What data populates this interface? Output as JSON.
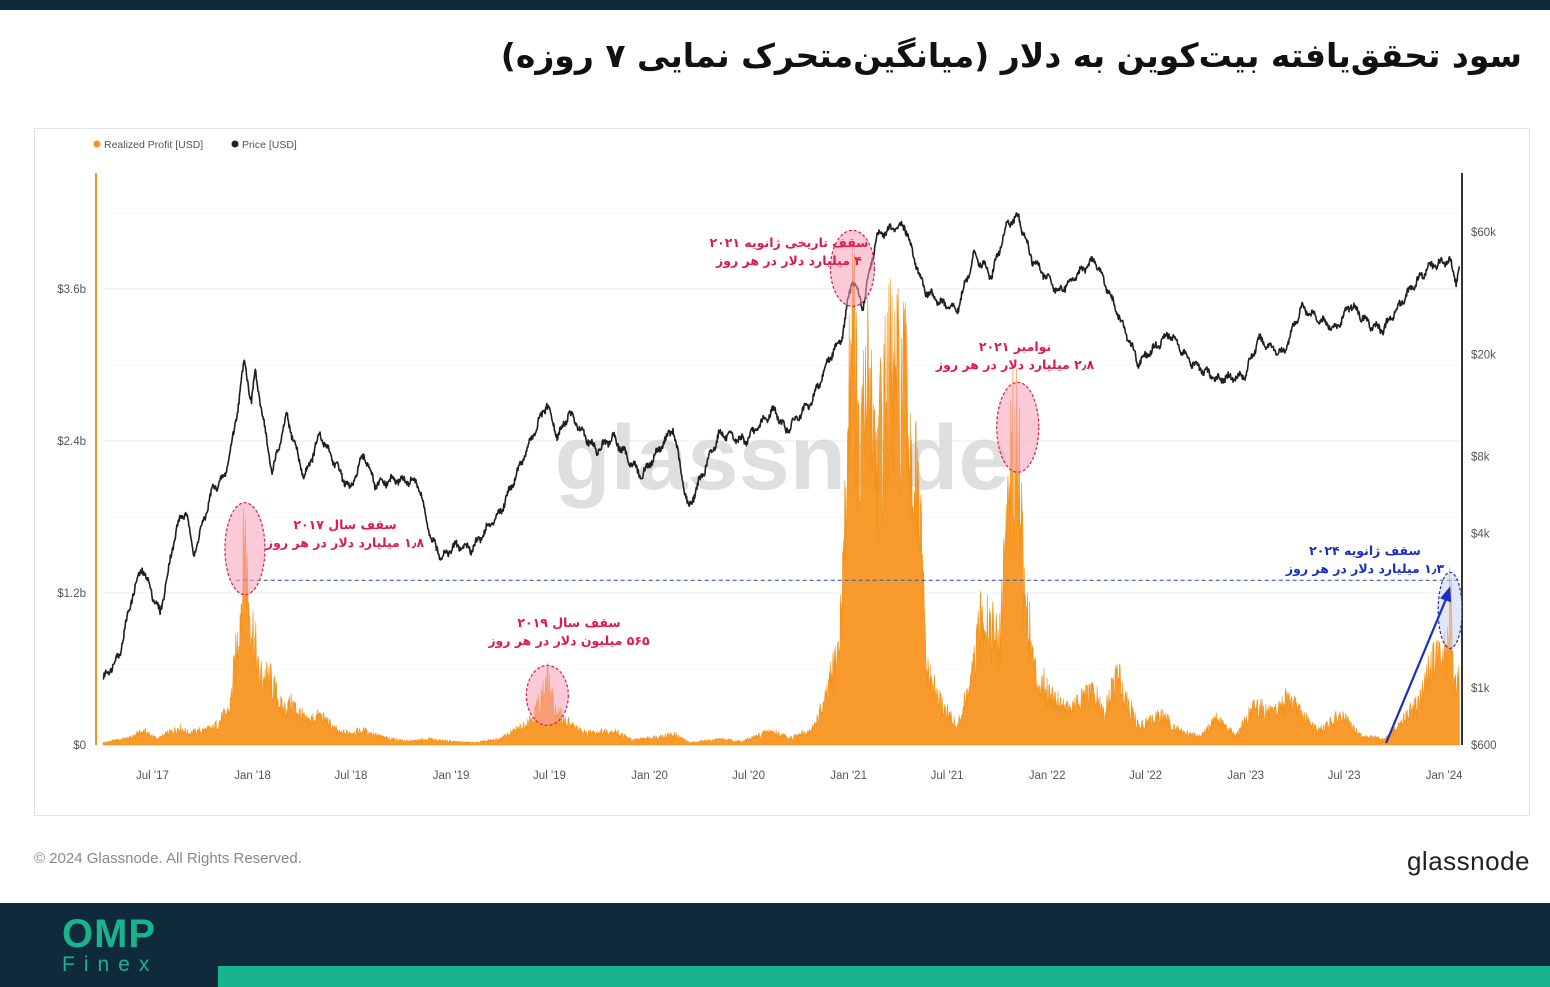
{
  "header": {
    "title": "سود تحقق‌یافته بیت‌کوین به دلار (میانگین‌متحرک نمایی ۷ روزه)"
  },
  "chart_data": {
    "type": "area",
    "legend": [
      {
        "name": "Realized Profit [USD]",
        "color": "#f7931a"
      },
      {
        "name": "Price [USD]",
        "color": "#222222"
      }
    ],
    "legend_position": "top-left",
    "watermark": "glassnode",
    "x": {
      "range": [
        "2017-04-01",
        "2024-02-01"
      ],
      "ticks": [
        {
          "label": "Jul '17",
          "date": "2017-07-01"
        },
        {
          "label": "Jan '18",
          "date": "2018-01-01"
        },
        {
          "label": "Jul '18",
          "date": "2018-07-01"
        },
        {
          "label": "Jan '19",
          "date": "2019-01-01"
        },
        {
          "label": "Jul '19",
          "date": "2019-07-01"
        },
        {
          "label": "Jan '20",
          "date": "2020-01-01"
        },
        {
          "label": "Jul '20",
          "date": "2020-07-01"
        },
        {
          "label": "Jan '21",
          "date": "2021-01-01"
        },
        {
          "label": "Jul '21",
          "date": "2021-07-01"
        },
        {
          "label": "Jan '22",
          "date": "2022-01-01"
        },
        {
          "label": "Jul '22",
          "date": "2022-07-01"
        },
        {
          "label": "Jan '23",
          "date": "2023-01-01"
        },
        {
          "label": "Jul '23",
          "date": "2023-07-01"
        },
        {
          "label": "Jan '24",
          "date": "2024-01-01"
        }
      ]
    },
    "y_left": {
      "label": "",
      "range": [
        0,
        4.5
      ],
      "unit": "billion USD",
      "ticks": [
        {
          "label": "$0",
          "value": 0
        },
        {
          "label": "$1.2b",
          "value": 1.2
        },
        {
          "label": "$2.4b",
          "value": 2.4
        },
        {
          "label": "$3.6b",
          "value": 3.6
        }
      ]
    },
    "y_right": {
      "label": "",
      "scale": "log",
      "range": [
        600,
        100000
      ],
      "ticks": [
        {
          "label": "$600",
          "value": 600
        },
        {
          "label": "$1k",
          "value": 1000
        },
        {
          "label": "$4k",
          "value": 4000
        },
        {
          "label": "$8k",
          "value": 8000
        },
        {
          "label": "$20k",
          "value": 20000
        },
        {
          "label": "$60k",
          "value": 60000
        }
      ]
    },
    "series": [
      {
        "name": "Realized Profit [USD]",
        "axis": "left",
        "unit": "billion USD",
        "points": [
          [
            "2017-04-01",
            0.02
          ],
          [
            "2017-05-20",
            0.06
          ],
          [
            "2017-06-15",
            0.12
          ],
          [
            "2017-07-10",
            0.05
          ],
          [
            "2017-08-20",
            0.15
          ],
          [
            "2017-09-05",
            0.1
          ],
          [
            "2017-10-20",
            0.14
          ],
          [
            "2017-11-20",
            0.3
          ],
          [
            "2017-12-05",
            0.9
          ],
          [
            "2017-12-12",
            1.3
          ],
          [
            "2017-12-18",
            1.85
          ],
          [
            "2017-12-24",
            1.25
          ],
          [
            "2018-01-05",
            0.9
          ],
          [
            "2018-01-12",
            0.6
          ],
          [
            "2018-02-03",
            0.55
          ],
          [
            "2018-02-25",
            0.3
          ],
          [
            "2018-03-15",
            0.35
          ],
          [
            "2018-04-10",
            0.2
          ],
          [
            "2018-05-05",
            0.25
          ],
          [
            "2018-06-10",
            0.1
          ],
          [
            "2018-07-25",
            0.12
          ],
          [
            "2018-09-01",
            0.06
          ],
          [
            "2018-10-15",
            0.03
          ],
          [
            "2018-11-20",
            0.05
          ],
          [
            "2019-01-01",
            0.03
          ],
          [
            "2019-02-15",
            0.02
          ],
          [
            "2019-04-01",
            0.05
          ],
          [
            "2019-05-10",
            0.15
          ],
          [
            "2019-06-01",
            0.25
          ],
          [
            "2019-06-20",
            0.45
          ],
          [
            "2019-06-27",
            0.565
          ],
          [
            "2019-07-10",
            0.3
          ],
          [
            "2019-08-01",
            0.2
          ],
          [
            "2019-09-01",
            0.1
          ],
          [
            "2019-10-28",
            0.12
          ],
          [
            "2019-12-01",
            0.04
          ],
          [
            "2020-02-15",
            0.09
          ],
          [
            "2020-03-15",
            0.02
          ],
          [
            "2020-05-10",
            0.05
          ],
          [
            "2020-06-20",
            0.03
          ],
          [
            "2020-08-10",
            0.12
          ],
          [
            "2020-09-15",
            0.06
          ],
          [
            "2020-10-25",
            0.12
          ],
          [
            "2020-11-20",
            0.38
          ],
          [
            "2020-12-15",
            0.85
          ],
          [
            "2020-12-28",
            2.1
          ],
          [
            "2021-01-08",
            4.0
          ],
          [
            "2021-01-20",
            2.3
          ],
          [
            "2021-02-08",
            3.2
          ],
          [
            "2021-02-22",
            2.4
          ],
          [
            "2021-03-15",
            3.1
          ],
          [
            "2021-04-14",
            3.0
          ],
          [
            "2021-05-01",
            2.3
          ],
          [
            "2021-05-12",
            1.9
          ],
          [
            "2021-05-25",
            0.6
          ],
          [
            "2021-06-20",
            0.35
          ],
          [
            "2021-07-20",
            0.15
          ],
          [
            "2021-08-15",
            0.55
          ],
          [
            "2021-09-07",
            1.2
          ],
          [
            "2021-10-05",
            0.8
          ],
          [
            "2021-10-20",
            2.1
          ],
          [
            "2021-11-08",
            2.8
          ],
          [
            "2021-11-20",
            1.3
          ],
          [
            "2021-12-10",
            0.6
          ],
          [
            "2022-01-05",
            0.45
          ],
          [
            "2022-02-10",
            0.3
          ],
          [
            "2022-03-29",
            0.45
          ],
          [
            "2022-04-15",
            0.25
          ],
          [
            "2022-05-10",
            0.6
          ],
          [
            "2022-06-18",
            0.15
          ],
          [
            "2022-07-30",
            0.25
          ],
          [
            "2022-09-01",
            0.12
          ],
          [
            "2022-10-10",
            0.07
          ],
          [
            "2022-11-08",
            0.22
          ],
          [
            "2022-12-15",
            0.08
          ],
          [
            "2023-01-20",
            0.35
          ],
          [
            "2023-02-20",
            0.25
          ],
          [
            "2023-03-20",
            0.4
          ],
          [
            "2023-04-15",
            0.25
          ],
          [
            "2023-05-15",
            0.12
          ],
          [
            "2023-06-25",
            0.25
          ],
          [
            "2023-08-01",
            0.08
          ],
          [
            "2023-09-15",
            0.05
          ],
          [
            "2023-10-25",
            0.25
          ],
          [
            "2023-11-20",
            0.4
          ],
          [
            "2023-12-08",
            0.7
          ],
          [
            "2024-01-08",
            0.8
          ],
          [
            "2024-01-12",
            1.3
          ],
          [
            "2024-01-20",
            0.55
          ],
          [
            "2024-01-29",
            0.6
          ]
        ]
      },
      {
        "name": "Price [USD]",
        "axis": "right",
        "unit": "USD",
        "points": [
          [
            "2017-04-01",
            1080
          ],
          [
            "2017-05-01",
            1350
          ],
          [
            "2017-05-25",
            2300
          ],
          [
            "2017-06-12",
            2950
          ],
          [
            "2017-07-15",
            1950
          ],
          [
            "2017-08-15",
            4300
          ],
          [
            "2017-09-01",
            4900
          ],
          [
            "2017-09-15",
            3300
          ],
          [
            "2017-10-20",
            6000
          ],
          [
            "2017-11-10",
            6600
          ],
          [
            "2017-11-28",
            9900
          ],
          [
            "2017-12-17",
            19000
          ],
          [
            "2017-12-30",
            13000
          ],
          [
            "2018-01-06",
            17100
          ],
          [
            "2018-02-06",
            6900
          ],
          [
            "2018-03-05",
            11500
          ],
          [
            "2018-04-06",
            6600
          ],
          [
            "2018-05-05",
            9700
          ],
          [
            "2018-06-29",
            5900
          ],
          [
            "2018-07-25",
            8200
          ],
          [
            "2018-08-14",
            6200
          ],
          [
            "2018-09-20",
            6500
          ],
          [
            "2018-11-01",
            6350
          ],
          [
            "2018-11-25",
            3800
          ],
          [
            "2018-12-15",
            3250
          ],
          [
            "2019-01-10",
            3600
          ],
          [
            "2019-02-08",
            3500
          ],
          [
            "2019-04-02",
            4900
          ],
          [
            "2019-05-15",
            8000
          ],
          [
            "2019-06-26",
            12800
          ],
          [
            "2019-07-16",
            9500
          ],
          [
            "2019-08-06",
            11800
          ],
          [
            "2019-09-25",
            8400
          ],
          [
            "2019-10-26",
            9500
          ],
          [
            "2019-12-17",
            6700
          ],
          [
            "2020-02-13",
            10300
          ],
          [
            "2020-03-12",
            5000
          ],
          [
            "2020-05-08",
            9800
          ],
          [
            "2020-06-25",
            9200
          ],
          [
            "2020-08-17",
            12200
          ],
          [
            "2020-09-08",
            10100
          ],
          [
            "2020-10-25",
            13100
          ],
          [
            "2020-11-25",
            19000
          ],
          [
            "2020-12-20",
            23500
          ],
          [
            "2021-01-08",
            40000
          ],
          [
            "2021-01-27",
            30500
          ],
          [
            "2021-02-21",
            57000
          ],
          [
            "2021-03-14",
            61000
          ],
          [
            "2021-04-14",
            63500
          ],
          [
            "2021-05-19",
            36000
          ],
          [
            "2021-06-22",
            31500
          ],
          [
            "2021-07-20",
            29800
          ],
          [
            "2021-08-20",
            49000
          ],
          [
            "2021-09-21",
            40500
          ],
          [
            "2021-10-20",
            65000
          ],
          [
            "2021-11-10",
            68000
          ],
          [
            "2021-12-04",
            47000
          ],
          [
            "2022-01-22",
            35000
          ],
          [
            "2022-03-29",
            47000
          ],
          [
            "2022-05-12",
            28500
          ],
          [
            "2022-06-18",
            18500
          ],
          [
            "2022-08-15",
            24200
          ],
          [
            "2022-09-20",
            18800
          ],
          [
            "2022-11-09",
            16000
          ],
          [
            "2022-12-30",
            16500
          ],
          [
            "2023-01-25",
            22900
          ],
          [
            "2023-03-10",
            20000
          ],
          [
            "2023-04-14",
            30500
          ],
          [
            "2023-06-15",
            25000
          ],
          [
            "2023-07-13",
            31400
          ],
          [
            "2023-08-18",
            26000
          ],
          [
            "2023-09-11",
            25000
          ],
          [
            "2023-10-25",
            34500
          ],
          [
            "2023-12-05",
            44000
          ],
          [
            "2024-01-11",
            46500
          ],
          [
            "2024-01-23",
            39000
          ],
          [
            "2024-01-29",
            43000
          ]
        ]
      }
    ],
    "reference_line": {
      "value": 1.3,
      "axis": "left",
      "style": "dashed",
      "color": "#3a5fb0",
      "x_from": "2017-12-01"
    },
    "annotations": [
      {
        "lines": [
          "سقف سال ۲۰۱۷",
          "۱٫۸ میلیارد دلار در هر روز"
        ],
        "color": "#e2184b",
        "date": "2017-12-18",
        "value": 1.85
      },
      {
        "lines": [
          "سقف سال ۲۰۱۹",
          "۵۶۵ میلیون دلار در هر روز"
        ],
        "color": "#e2184b",
        "date": "2019-06-27",
        "value": 0.565
      },
      {
        "lines": [
          "سقف تاریخی ژانویه ۲۰۲۱",
          "۴ میلیارد دلار در هر روز"
        ],
        "color": "#e2184b",
        "date": "2021-01-08",
        "value": 4.0
      },
      {
        "lines": [
          "نوامبر ۲۰۲۱",
          "۲٫۸ میلیارد دلار در هر روز"
        ],
        "color": "#e2184b",
        "date": "2021-11-08",
        "value": 2.8
      },
      {
        "lines": [
          "سقف ژانویه ۲۰۲۴",
          "۱٫۳ میلیارد دلار در هر روز"
        ],
        "color": "#1a2fbf",
        "date": "2024-01-12",
        "value": 1.3
      }
    ]
  },
  "footer": {
    "copyright": "© 2024 Glassnode. All Rights Reserved.",
    "brand": "glassnode",
    "logo_main": "OMP",
    "logo_sub": "Finex"
  }
}
